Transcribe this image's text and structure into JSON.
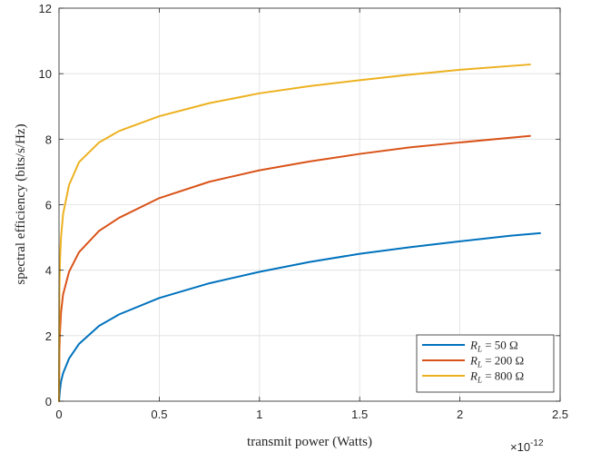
{
  "chart_data": {
    "type": "line",
    "xlabel": "transmit power (Watts)",
    "ylabel": "spectral efficiency (bits/s/Hz)",
    "x_exponent_label": "×10",
    "x_exponent_power": "-12",
    "xlim": [
      0,
      2.5
    ],
    "ylim": [
      0,
      12
    ],
    "xticks": [
      0,
      0.5,
      1,
      1.5,
      2,
      2.5
    ],
    "xtick_labels": [
      "0",
      "0.5",
      "1",
      "1.5",
      "2",
      "2.5"
    ],
    "yticks": [
      0,
      2,
      4,
      6,
      8,
      10,
      12
    ],
    "ytick_labels": [
      "0",
      "2",
      "4",
      "6",
      "8",
      "10",
      "12"
    ],
    "grid": true,
    "legend_position": "bottom-right",
    "series": [
      {
        "name": "R_L = 50 Ω",
        "legend_main": "R",
        "legend_sub": "L",
        "legend_rest": " = 50 Ω",
        "color": "#0072BD",
        "x": [
          0,
          0.005,
          0.01,
          0.02,
          0.05,
          0.1,
          0.2,
          0.3,
          0.5,
          0.75,
          1.0,
          1.25,
          1.5,
          1.75,
          2.0,
          2.25,
          2.4
        ],
        "y": [
          0,
          0.35,
          0.6,
          0.85,
          1.3,
          1.75,
          2.3,
          2.65,
          3.15,
          3.6,
          3.95,
          4.25,
          4.5,
          4.7,
          4.88,
          5.05,
          5.13
        ]
      },
      {
        "name": "R_L = 200 Ω",
        "legend_main": "R",
        "legend_sub": "L",
        "legend_rest": " = 200 Ω",
        "color": "#D95319",
        "x": [
          0,
          0.002,
          0.005,
          0.01,
          0.02,
          0.05,
          0.1,
          0.2,
          0.3,
          0.5,
          0.75,
          1.0,
          1.25,
          1.5,
          1.75,
          2.0,
          2.35
        ],
        "y": [
          0,
          1.5,
          2.1,
          2.7,
          3.25,
          3.95,
          4.55,
          5.2,
          5.6,
          6.2,
          6.7,
          7.05,
          7.32,
          7.55,
          7.75,
          7.9,
          8.1
        ]
      },
      {
        "name": "R_L = 800 Ω",
        "legend_main": "R",
        "legend_sub": "L",
        "legend_rest": " = 800 Ω",
        "color": "#EDB120",
        "x": [
          0,
          0.002,
          0.005,
          0.01,
          0.02,
          0.05,
          0.1,
          0.2,
          0.3,
          0.5,
          0.75,
          1.0,
          1.25,
          1.5,
          1.75,
          2.0,
          2.35
        ],
        "y": [
          0,
          3.4,
          4.3,
          5.0,
          5.7,
          6.6,
          7.3,
          7.9,
          8.25,
          8.7,
          9.1,
          9.4,
          9.62,
          9.8,
          9.97,
          10.12,
          10.28
        ]
      }
    ]
  }
}
